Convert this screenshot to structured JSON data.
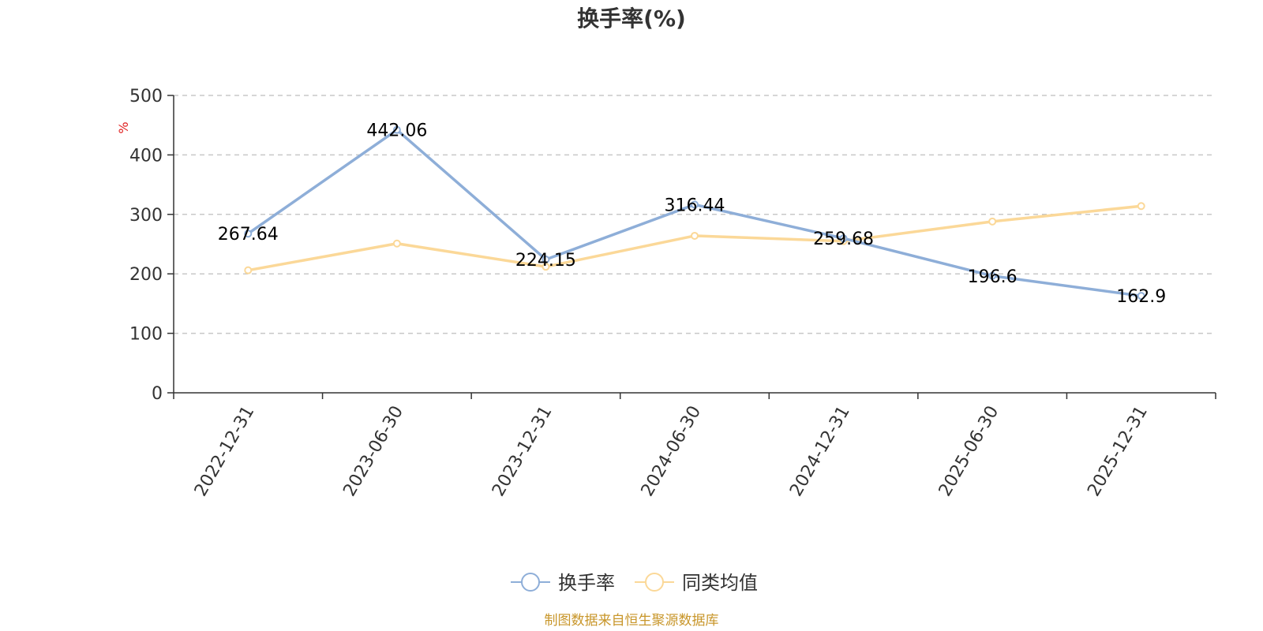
{
  "colors": {
    "series_primary": "#8eaed8",
    "series_secondary": "#fbd898",
    "ylabel": "#e02020",
    "footer": "#c8962a",
    "grid": "#c8c8c8",
    "axis": "#333333"
  },
  "footer": "制图数据来自恒生聚源数据库",
  "chart_data": {
    "type": "line",
    "title": "换手率(%)",
    "ylabel": "%",
    "xlabel": "",
    "ylim": [
      0,
      500
    ],
    "yticks": [
      0,
      100,
      200,
      300,
      400,
      500
    ],
    "grid": "horizontal dashed",
    "legend_position": "bottom-center",
    "categories": [
      "2022-12-31",
      "2023-06-30",
      "2023-12-31",
      "2024-06-30",
      "2024-12-31",
      "2025-06-30",
      "2025-12-31"
    ],
    "series": [
      {
        "name": "换手率",
        "values": [
          267.64,
          442.06,
          224.15,
          316.44,
          259.68,
          196.6,
          162.9
        ],
        "labels": [
          "267.64",
          "442.06",
          "224.15",
          "316.44",
          "259.68",
          "196.6",
          "162.9"
        ],
        "color": "#8eaed8"
      },
      {
        "name": "同类均值",
        "values": [
          206,
          251,
          212,
          264,
          255,
          288,
          314
        ],
        "color": "#fbd898"
      }
    ]
  }
}
